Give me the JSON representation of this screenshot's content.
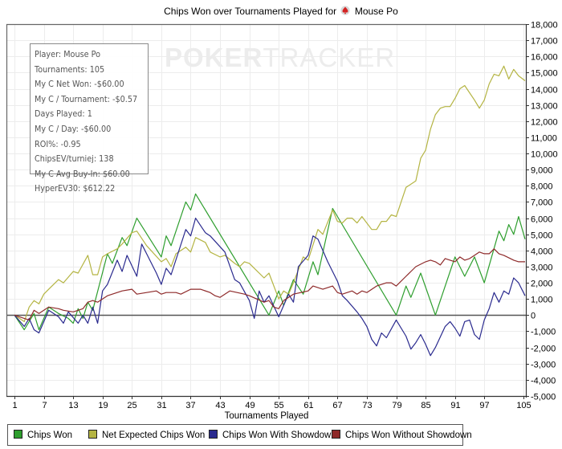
{
  "title": {
    "prefix": "Chips Won over Tournaments Played for",
    "player": "Mouse Po",
    "icon": "pokerstars-spade-icon"
  },
  "watermark": {
    "bold": "POKER",
    "light": "TRACKER"
  },
  "info_box": [
    "Player: Mouse Po",
    "Tournaments: 105",
    "My C Net Won: -$60.00",
    "My C / Tournament: -$0.57",
    "Days Played: 1",
    "My C / Day: -$60.00",
    "ROI%: -0.95",
    "ChipsEV/turniej: 138",
    "My C Avg Buy-In: $60.00",
    "HyperEV30: $612.22"
  ],
  "chart_data": {
    "type": "line",
    "title": "Chips Won over Tournaments Played for Mouse Po",
    "xlabel": "Tournaments Played",
    "ylabel": "",
    "xlim": [
      1,
      105
    ],
    "ylim": [
      -5000,
      18000
    ],
    "x_ticks": [
      "1",
      "7",
      "13",
      "19",
      "25",
      "31",
      "37",
      "43",
      "49",
      "55",
      "61",
      "67",
      "73",
      "79",
      "85",
      "91",
      "97",
      "105"
    ],
    "x_tick_values": [
      1,
      7,
      13,
      19,
      25,
      31,
      37,
      43,
      49,
      55,
      61,
      67,
      73,
      79,
      85,
      91,
      97,
      105
    ],
    "y_ticks": [
      "18,000",
      "17,000",
      "16,000",
      "15,000",
      "14,000",
      "13,000",
      "12,000",
      "11,000",
      "10,000",
      "9,000",
      "8,000",
      "7,000",
      "6,000",
      "5,000",
      "4,000",
      "3,000",
      "2,000",
      "1,000",
      "0",
      "-1,000",
      "-2,000",
      "-3,000",
      "-4,000",
      "-5,000"
    ],
    "y_tick_values": [
      18000,
      17000,
      16000,
      15000,
      14000,
      13000,
      12000,
      11000,
      10000,
      9000,
      8000,
      7000,
      6000,
      5000,
      4000,
      3000,
      2000,
      1000,
      0,
      -1000,
      -2000,
      -3000,
      -4000,
      -5000
    ],
    "grid": true,
    "legend_position": "bottom",
    "series": [
      {
        "name": "Chips Won",
        "color": "#2e9e2e",
        "points": [
          [
            1,
            0
          ],
          [
            3,
            -900
          ],
          [
            5,
            100
          ],
          [
            6,
            -900
          ],
          [
            8,
            500
          ],
          [
            10,
            100
          ],
          [
            12,
            -200
          ],
          [
            13,
            -500
          ],
          [
            14,
            400
          ],
          [
            15,
            -200
          ],
          [
            16,
            800
          ],
          [
            17,
            300
          ],
          [
            20,
            3800
          ],
          [
            21,
            3200
          ],
          [
            23,
            4800
          ],
          [
            24,
            4300
          ],
          [
            26,
            6000
          ],
          [
            31,
            3600
          ],
          [
            32,
            4900
          ],
          [
            33,
            4300
          ],
          [
            36,
            7000
          ],
          [
            37,
            6500
          ],
          [
            38,
            7500
          ],
          [
            53,
            0
          ],
          [
            55,
            1500
          ],
          [
            56,
            600
          ],
          [
            58,
            2200
          ],
          [
            60,
            1300
          ],
          [
            62,
            3300
          ],
          [
            63,
            2500
          ],
          [
            66,
            6600
          ],
          [
            79,
            0
          ],
          [
            81,
            1800
          ],
          [
            82,
            1100
          ],
          [
            84,
            2600
          ],
          [
            87,
            0
          ],
          [
            91,
            3600
          ],
          [
            93,
            2400
          ],
          [
            95,
            3600
          ],
          [
            97,
            2000
          ],
          [
            100,
            5200
          ],
          [
            101,
            4600
          ],
          [
            102,
            5600
          ],
          [
            103,
            5000
          ],
          [
            104,
            6100
          ],
          [
            106,
            4700
          ]
        ]
      },
      {
        "name": "Net Expected Chips Won",
        "color": "#b4b442",
        "points": [
          [
            1,
            0
          ],
          [
            3,
            -400
          ],
          [
            4,
            500
          ],
          [
            5,
            900
          ],
          [
            6,
            700
          ],
          [
            7,
            1300
          ],
          [
            8,
            1600
          ],
          [
            10,
            2200
          ],
          [
            11,
            2000
          ],
          [
            13,
            2700
          ],
          [
            14,
            2600
          ],
          [
            16,
            3700
          ],
          [
            17,
            2500
          ],
          [
            18,
            2500
          ],
          [
            19,
            3600
          ],
          [
            20,
            3800
          ],
          [
            22,
            4100
          ],
          [
            23,
            4400
          ],
          [
            25,
            5100
          ],
          [
            26,
            5200
          ],
          [
            28,
            4300
          ],
          [
            31,
            3300
          ],
          [
            32,
            3500
          ],
          [
            33,
            3000
          ],
          [
            34,
            3800
          ],
          [
            36,
            4200
          ],
          [
            37,
            3900
          ],
          [
            38,
            4800
          ],
          [
            40,
            4500
          ],
          [
            41,
            3900
          ],
          [
            43,
            3600
          ],
          [
            44,
            3700
          ],
          [
            46,
            3200
          ],
          [
            47,
            3000
          ],
          [
            48,
            3300
          ],
          [
            49,
            3200
          ],
          [
            52,
            2300
          ],
          [
            53,
            2600
          ],
          [
            55,
            1000
          ],
          [
            56,
            1500
          ],
          [
            57,
            1300
          ],
          [
            58,
            2000
          ],
          [
            60,
            3600
          ],
          [
            61,
            3400
          ],
          [
            63,
            5300
          ],
          [
            64,
            5000
          ],
          [
            66,
            6500
          ],
          [
            67,
            5800
          ],
          [
            68,
            5700
          ],
          [
            69,
            6000
          ],
          [
            70,
            6000
          ],
          [
            71,
            5700
          ],
          [
            72,
            6100
          ],
          [
            74,
            5300
          ],
          [
            75,
            5300
          ],
          [
            76,
            5800
          ],
          [
            77,
            5800
          ],
          [
            78,
            6200
          ],
          [
            79,
            6100
          ],
          [
            81,
            7900
          ],
          [
            83,
            8300
          ],
          [
            84,
            9700
          ],
          [
            85,
            10200
          ],
          [
            86,
            11500
          ],
          [
            87,
            12400
          ],
          [
            88,
            12800
          ],
          [
            89,
            12900
          ],
          [
            90,
            12900
          ],
          [
            91,
            13400
          ],
          [
            92,
            14000
          ],
          [
            93,
            14200
          ],
          [
            95,
            13300
          ],
          [
            96,
            12800
          ],
          [
            97,
            13300
          ],
          [
            98,
            14300
          ],
          [
            99,
            14900
          ],
          [
            100,
            14800
          ],
          [
            101,
            15400
          ],
          [
            102,
            14600
          ],
          [
            103,
            15200
          ],
          [
            104,
            14800
          ],
          [
            106,
            14500
          ]
        ]
      },
      {
        "name": "Chips Won With Showdown",
        "color": "#2a2a8e",
        "points": [
          [
            1,
            0
          ],
          [
            3,
            -700
          ],
          [
            4,
            -200
          ],
          [
            5,
            -900
          ],
          [
            6,
            -1100
          ],
          [
            8,
            300
          ],
          [
            10,
            -100
          ],
          [
            11,
            -500
          ],
          [
            12,
            200
          ],
          [
            14,
            -500
          ],
          [
            15,
            0
          ],
          [
            16,
            -500
          ],
          [
            17,
            500
          ],
          [
            18,
            -500
          ],
          [
            19,
            1500
          ],
          [
            20,
            1900
          ],
          [
            22,
            3400
          ],
          [
            23,
            2700
          ],
          [
            24,
            3700
          ],
          [
            26,
            2400
          ],
          [
            27,
            4400
          ],
          [
            28,
            3800
          ],
          [
            30,
            2600
          ],
          [
            31,
            1900
          ],
          [
            32,
            2900
          ],
          [
            33,
            2500
          ],
          [
            36,
            5300
          ],
          [
            37,
            4900
          ],
          [
            38,
            6000
          ],
          [
            40,
            5100
          ],
          [
            41,
            4900
          ],
          [
            44,
            3900
          ],
          [
            46,
            2200
          ],
          [
            47,
            2000
          ],
          [
            49,
            900
          ],
          [
            50,
            -200
          ],
          [
            51,
            1500
          ],
          [
            52,
            800
          ],
          [
            53,
            1200
          ],
          [
            55,
            -100
          ],
          [
            57,
            1300
          ],
          [
            58,
            800
          ],
          [
            59,
            3000
          ],
          [
            61,
            3700
          ],
          [
            62,
            4900
          ],
          [
            63,
            4700
          ],
          [
            65,
            3300
          ],
          [
            67,
            2100
          ],
          [
            68,
            1200
          ],
          [
            69,
            900
          ],
          [
            71,
            200
          ],
          [
            72,
            -200
          ],
          [
            73,
            -700
          ],
          [
            74,
            -1500
          ],
          [
            75,
            -1900
          ],
          [
            76,
            -1100
          ],
          [
            77,
            -1400
          ],
          [
            79,
            -300
          ],
          [
            81,
            -1300
          ],
          [
            82,
            -2100
          ],
          [
            83,
            -1700
          ],
          [
            84,
            -1200
          ],
          [
            85,
            -1800
          ],
          [
            86,
            -2500
          ],
          [
            87,
            -2000
          ],
          [
            89,
            -700
          ],
          [
            90,
            -400
          ],
          [
            91,
            -800
          ],
          [
            92,
            -1300
          ],
          [
            93,
            -400
          ],
          [
            94,
            -300
          ],
          [
            95,
            -1200
          ],
          [
            96,
            -1500
          ],
          [
            97,
            -300
          ],
          [
            98,
            400
          ],
          [
            99,
            1400
          ],
          [
            100,
            800
          ],
          [
            101,
            1500
          ],
          [
            102,
            1300
          ],
          [
            103,
            2300
          ],
          [
            104,
            2000
          ],
          [
            106,
            1200
          ]
        ]
      },
      {
        "name": "Chips Won Without Showdown",
        "color": "#8e2a2a",
        "points": [
          [
            1,
            0
          ],
          [
            3,
            -200
          ],
          [
            4,
            -300
          ],
          [
            5,
            300
          ],
          [
            6,
            100
          ],
          [
            8,
            500
          ],
          [
            10,
            400
          ],
          [
            11,
            300
          ],
          [
            13,
            200
          ],
          [
            14,
            300
          ],
          [
            15,
            400
          ],
          [
            16,
            800
          ],
          [
            17,
            900
          ],
          [
            18,
            800
          ],
          [
            20,
            1200
          ],
          [
            23,
            1500
          ],
          [
            25,
            1600
          ],
          [
            26,
            1300
          ],
          [
            28,
            1400
          ],
          [
            30,
            1500
          ],
          [
            31,
            1300
          ],
          [
            32,
            1400
          ],
          [
            34,
            1400
          ],
          [
            35,
            1300
          ],
          [
            37,
            1600
          ],
          [
            39,
            1600
          ],
          [
            41,
            1400
          ],
          [
            42,
            1200
          ],
          [
            43,
            1100
          ],
          [
            45,
            1500
          ],
          [
            48,
            1300
          ],
          [
            49,
            1200
          ],
          [
            52,
            800
          ],
          [
            53,
            900
          ],
          [
            54,
            500
          ],
          [
            55,
            400
          ],
          [
            56,
            900
          ],
          [
            58,
            1300
          ],
          [
            61,
            1500
          ],
          [
            62,
            1800
          ],
          [
            64,
            1600
          ],
          [
            66,
            1800
          ],
          [
            67,
            1400
          ],
          [
            68,
            1300
          ],
          [
            70,
            1500
          ],
          [
            71,
            1300
          ],
          [
            72,
            1500
          ],
          [
            73,
            1400
          ],
          [
            75,
            1800
          ],
          [
            77,
            2000
          ],
          [
            78,
            2000
          ],
          [
            79,
            1800
          ],
          [
            81,
            2400
          ],
          [
            82,
            2700
          ],
          [
            83,
            3000
          ],
          [
            85,
            3300
          ],
          [
            86,
            3400
          ],
          [
            87,
            3300
          ],
          [
            88,
            3100
          ],
          [
            89,
            3500
          ],
          [
            91,
            3300
          ],
          [
            92,
            3600
          ],
          [
            93,
            3400
          ],
          [
            94,
            3500
          ],
          [
            95,
            3700
          ],
          [
            96,
            3900
          ],
          [
            97,
            3800
          ],
          [
            98,
            3800
          ],
          [
            99,
            4100
          ],
          [
            100,
            3800
          ],
          [
            101,
            3700
          ],
          [
            103,
            3400
          ],
          [
            104,
            3300
          ],
          [
            106,
            3300
          ]
        ]
      }
    ]
  }
}
